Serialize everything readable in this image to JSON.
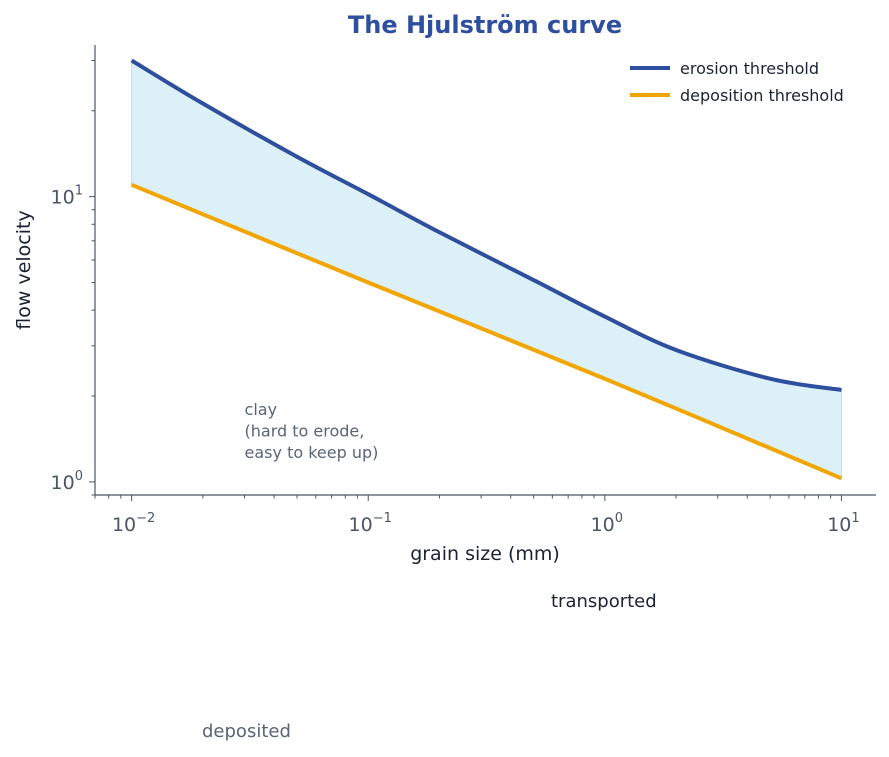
{
  "chart_data": {
    "type": "line",
    "title": "The Hjulström curve",
    "xlabel": "grain size (mm)",
    "ylabel": "flow velocity",
    "x_scale": "log",
    "y_scale": "log",
    "xlim": [
      0.007,
      14
    ],
    "ylim": [
      0.9,
      34
    ],
    "x_ticks": [
      {
        "value": 0.01,
        "base": "10",
        "exp": "−2"
      },
      {
        "value": 0.1,
        "base": "10",
        "exp": "−1"
      },
      {
        "value": 1,
        "base": "10",
        "exp": "0"
      },
      {
        "value": 10,
        "base": "10",
        "exp": "1"
      }
    ],
    "y_ticks": [
      {
        "value": 1,
        "base": "10",
        "exp": "0"
      },
      {
        "value": 10,
        "base": "10",
        "exp": "1"
      }
    ],
    "series": [
      {
        "name": "erosion threshold",
        "color": "#2e4f9e",
        "x": [
          0.01,
          0.02,
          0.05,
          0.1,
          0.2,
          0.5,
          1,
          2,
          5,
          10
        ],
        "y": [
          30.0,
          21.2,
          13.8,
          10.2,
          7.5,
          5.1,
          3.8,
          2.9,
          2.3,
          2.1
        ]
      },
      {
        "name": "deposition threshold",
        "color": "#f0a500",
        "x": [
          0.01,
          0.1,
          1,
          10
        ],
        "y": [
          11.0,
          5.0,
          2.3,
          1.03
        ]
      }
    ],
    "band_fill": "#dcf0f7",
    "grid": false,
    "legend_position": "top-right",
    "annotations": [
      {
        "lines": [
          "clay",
          "(hard to erode,",
          "easy to keep up)"
        ],
        "color": "#5a6478"
      }
    ]
  },
  "labels": {
    "transported": "transported",
    "deposited": "deposited"
  },
  "colors": {
    "title": "#2e4f9e",
    "axis": "#4a5568",
    "transported": "#1a2233",
    "deposited": "#5a6478"
  }
}
